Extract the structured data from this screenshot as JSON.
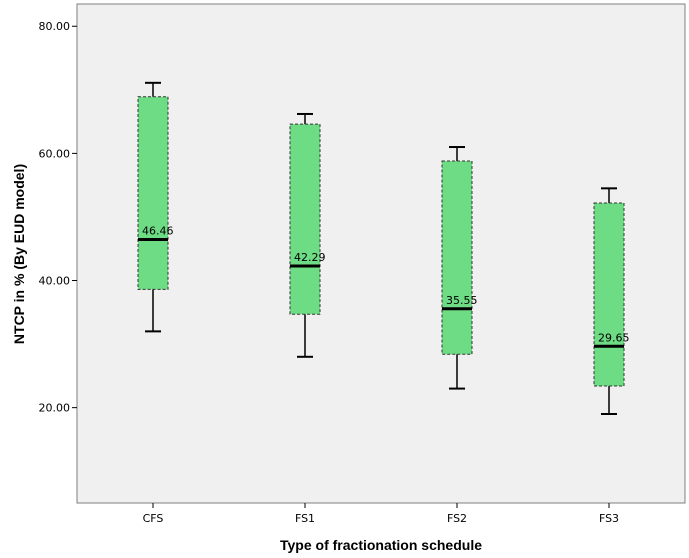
{
  "chart_data": {
    "type": "box",
    "xlabel": "Type of fractionation schedule",
    "ylabel": "NTCP in % (By EUD model)",
    "ylim": [
      5,
      83.5
    ],
    "yticks": [
      20,
      40,
      60,
      80
    ],
    "ytick_labels": [
      "20.00",
      "40.00",
      "60.00",
      "80.00"
    ],
    "grid": false,
    "categories": [
      "CFS",
      "FS1",
      "FS2",
      "FS3"
    ],
    "boxes": [
      {
        "category": "CFS",
        "min": 32.0,
        "q1": 38.6,
        "median": 46.46,
        "q3": 68.9,
        "max": 71.1,
        "median_label": "46.46"
      },
      {
        "category": "FS1",
        "min": 28.0,
        "q1": 34.7,
        "median": 42.29,
        "q3": 64.6,
        "max": 66.2,
        "median_label": "42.29"
      },
      {
        "category": "FS2",
        "min": 23.0,
        "q1": 28.4,
        "median": 35.55,
        "q3": 58.8,
        "max": 61.0,
        "median_label": "35.55"
      },
      {
        "category": "FS3",
        "min": 19.0,
        "q1": 23.4,
        "median": 29.65,
        "q3": 52.2,
        "max": 54.5,
        "median_label": "29.65"
      }
    ],
    "colors": {
      "box_fill": "#6edc84",
      "box_stroke": "#333333",
      "plot_background": "#f0f0f0",
      "whisker": "#000000"
    }
  }
}
